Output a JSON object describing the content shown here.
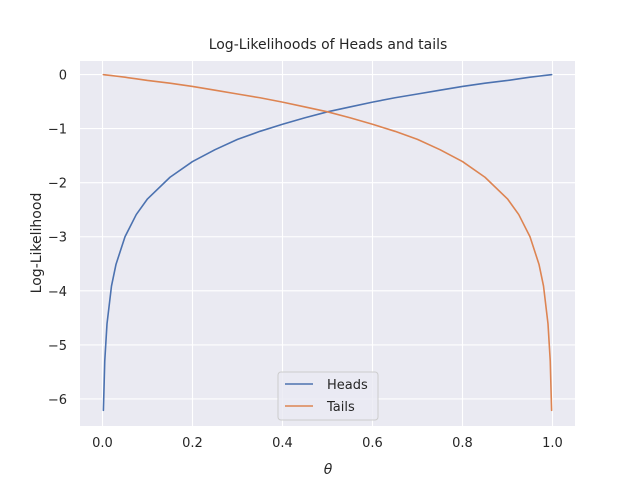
{
  "chart_data": {
    "type": "line",
    "title": "Log-Likelihoods of Heads and tails",
    "xlabel": "θ",
    "ylabel": "Log-Likelihood",
    "xlim": [
      -0.05,
      1.05
    ],
    "ylim": [
      -6.5,
      0.25
    ],
    "xticks": [
      0.0,
      0.2,
      0.4,
      0.6,
      0.8,
      1.0
    ],
    "xtick_labels": [
      "0.0",
      "0.2",
      "0.4",
      "0.6",
      "0.8",
      "1.0"
    ],
    "yticks": [
      0,
      -1,
      -2,
      -3,
      -4,
      -5,
      -6
    ],
    "ytick_labels": [
      "0",
      "−1",
      "−2",
      "−3",
      "−4",
      "−5",
      "−6"
    ],
    "grid": true,
    "legend_position": "bottom-center",
    "x": [
      0.002,
      0.005,
      0.01,
      0.02,
      0.03,
      0.05,
      0.075,
      0.1,
      0.15,
      0.2,
      0.25,
      0.3,
      0.35,
      0.4,
      0.45,
      0.5,
      0.55,
      0.6,
      0.65,
      0.7,
      0.75,
      0.8,
      0.85,
      0.9,
      0.925,
      0.95,
      0.97,
      0.98,
      0.99,
      0.995,
      0.998
    ],
    "series": [
      {
        "name": "Heads",
        "color": "#4c72b0",
        "values": [
          -6.21,
          -5.3,
          -4.61,
          -3.91,
          -3.51,
          -3.0,
          -2.59,
          -2.3,
          -1.9,
          -1.61,
          -1.39,
          -1.2,
          -1.05,
          -0.92,
          -0.8,
          -0.69,
          -0.6,
          -0.51,
          -0.43,
          -0.36,
          -0.29,
          -0.22,
          -0.16,
          -0.11,
          -0.08,
          -0.05,
          -0.03,
          -0.02,
          -0.01,
          -0.005,
          -0.002
        ]
      },
      {
        "name": "Tails",
        "color": "#dd8452",
        "values": [
          -0.002,
          -0.005,
          -0.01,
          -0.02,
          -0.03,
          -0.05,
          -0.08,
          -0.11,
          -0.16,
          -0.22,
          -0.29,
          -0.36,
          -0.43,
          -0.51,
          -0.6,
          -0.69,
          -0.8,
          -0.92,
          -1.05,
          -1.2,
          -1.39,
          -1.61,
          -1.9,
          -2.3,
          -2.59,
          -3.0,
          -3.51,
          -3.91,
          -4.61,
          -5.3,
          -6.21
        ]
      }
    ]
  }
}
